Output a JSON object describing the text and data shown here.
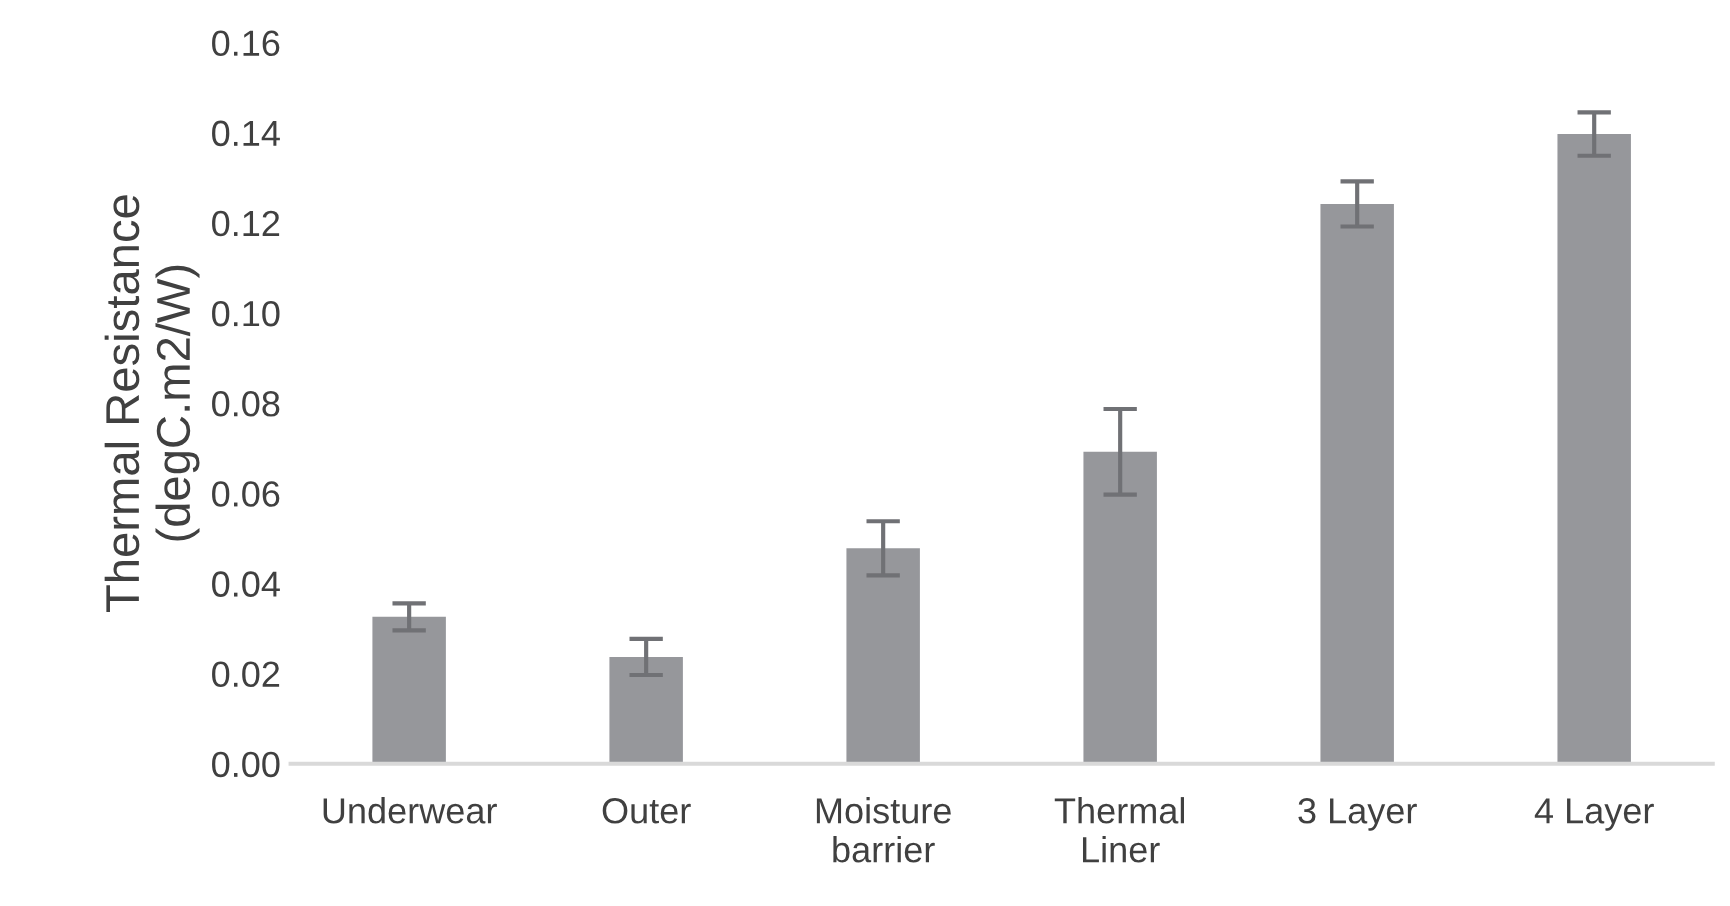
{
  "chart_data": {
    "type": "bar",
    "ylabel": "Thermal Resistance\n(degC.m2/W)",
    "categories": [
      "Underwear",
      "Outer",
      "Moisture\nbarrier",
      "Thermal\nLiner",
      "3 Layer",
      "4 Layer"
    ],
    "values": [
      0.0326,
      0.0237,
      0.0478,
      0.0692,
      0.1242,
      0.1397
    ],
    "errors": [
      0.003,
      0.004,
      0.006,
      0.0095,
      0.005,
      0.0048
    ],
    "color": "#96979b",
    "ylim": [
      0,
      0.16
    ],
    "yticks": [
      {
        "value": 0,
        "label": "0.00"
      },
      {
        "value": 0.02,
        "label": "0.02"
      },
      {
        "value": 0.04,
        "label": "0.04"
      },
      {
        "value": 0.06,
        "label": "0.06"
      },
      {
        "value": 0.08,
        "label": "0.08"
      },
      {
        "value": 0.1,
        "label": "0.10"
      },
      {
        "value": 0.12,
        "label": "0.12"
      },
      {
        "value": 0.14,
        "label": "0.14"
      },
      {
        "value": 0.16,
        "label": "0.16"
      }
    ],
    "grid": false
  }
}
